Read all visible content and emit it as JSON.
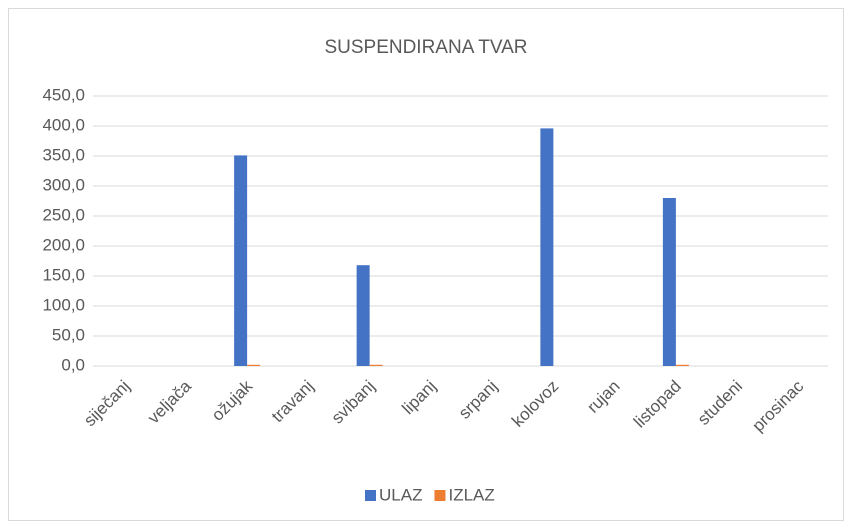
{
  "chart_data": {
    "type": "bar",
    "title": "SUSPENDIRANA TVAR",
    "categories": [
      "siječanj",
      "veljača",
      "ožujak",
      "travanj",
      "svibanj",
      "lipanj",
      "srpanj",
      "kolovoz",
      "rujan",
      "listopad",
      "studeni",
      "prosinac"
    ],
    "series": [
      {
        "name": "ULAZ",
        "color": "#4472c4",
        "values": [
          null,
          null,
          351,
          null,
          168,
          null,
          null,
          396,
          null,
          280,
          null,
          null
        ]
      },
      {
        "name": "IZLAZ",
        "color": "#ed7d31",
        "values": [
          null,
          null,
          2,
          null,
          2,
          null,
          null,
          null,
          null,
          2,
          null,
          null
        ]
      }
    ],
    "ylim": [
      0,
      450
    ],
    "yticks": [
      {
        "value": 0,
        "label": "0,0"
      },
      {
        "value": 50,
        "label": "50,0"
      },
      {
        "value": 100,
        "label": "100,0"
      },
      {
        "value": 150,
        "label": "150,0"
      },
      {
        "value": 200,
        "label": "200,0"
      },
      {
        "value": 250,
        "label": "250,0"
      },
      {
        "value": 300,
        "label": "300,0"
      },
      {
        "value": 350,
        "label": "350,0"
      },
      {
        "value": 400,
        "label": "400,0"
      },
      {
        "value": 450,
        "label": "450,0"
      }
    ],
    "grid": true,
    "legend": "bottom"
  }
}
